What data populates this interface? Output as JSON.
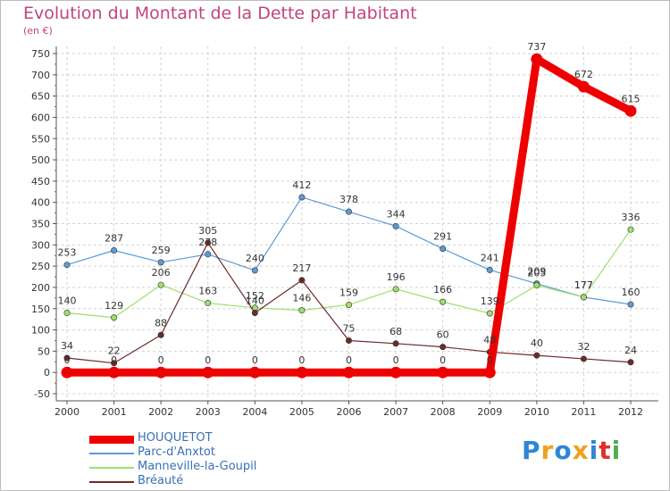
{
  "title": "Evolution du Montant de la Dette par Habitant",
  "subtitle": "(en €)",
  "logo": [
    "P",
    "r",
    "o",
    "x",
    "i",
    "t",
    "i"
  ],
  "logo_colors": [
    "#2e86d6",
    "#f0a020",
    "#2e86d6",
    "#f0a020",
    "#2e86d6",
    "#e03030",
    "#4caf50"
  ],
  "chart_data": {
    "type": "line",
    "x": [
      "2000",
      "2001",
      "2002",
      "2003",
      "2004",
      "2005",
      "2006",
      "2007",
      "2008",
      "2009",
      "2010",
      "2011",
      "2012"
    ],
    "yticks": [
      -50,
      0,
      50,
      100,
      150,
      200,
      250,
      300,
      350,
      400,
      450,
      500,
      550,
      600,
      650,
      700,
      750
    ],
    "ylim": [
      -50,
      750
    ],
    "grid": true,
    "legend_position": "bottom-left",
    "series": [
      {
        "name": "HOUQUETOT",
        "color": "#ee0000",
        "values": [
          0,
          0,
          0,
          0,
          0,
          0,
          0,
          0,
          0,
          0,
          737,
          672,
          615
        ],
        "labels": [
          "0",
          "0",
          "0",
          "0",
          "0",
          "0",
          "0",
          "0",
          "0",
          "0",
          "737",
          "672",
          "615"
        ]
      },
      {
        "name": "Parc-d'Anxtot",
        "color": "#5b9bd5",
        "values": [
          253,
          287,
          259,
          278,
          240,
          412,
          378,
          344,
          291,
          241,
          209,
          177,
          160
        ],
        "labels": [
          "253",
          "287",
          "259",
          "278",
          "240",
          "412",
          "378",
          "344",
          "291",
          "241",
          "209",
          "177",
          "160"
        ]
      },
      {
        "name": "Manneville-la-Goupil",
        "color": "#9ee06b",
        "values": [
          140,
          129,
          206,
          163,
          152,
          146,
          159,
          196,
          166,
          139,
          205,
          177,
          336
        ],
        "labels": [
          "140",
          "129",
          "206",
          "163",
          "152",
          "146",
          "159",
          "196",
          "166",
          "139",
          "205",
          "177",
          "336"
        ]
      },
      {
        "name": "Bréauté",
        "color": "#6e2a2a",
        "values": [
          34,
          22,
          88,
          305,
          140,
          217,
          75,
          68,
          60,
          48,
          40,
          32,
          24
        ],
        "labels": [
          "34",
          "22",
          "88",
          "305",
          "140",
          "217",
          "75",
          "68",
          "60",
          "48",
          "40",
          "32",
          "24"
        ]
      }
    ]
  }
}
